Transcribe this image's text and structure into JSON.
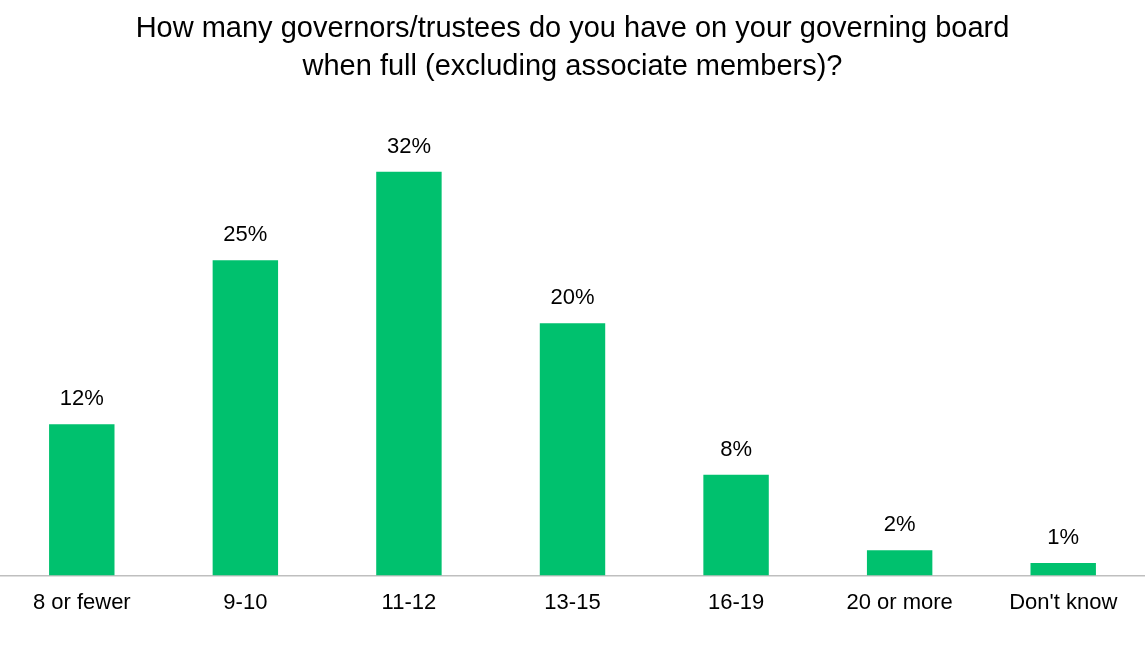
{
  "chart_data": {
    "type": "bar",
    "title": "How many governors/trustees do you have on your governing board when full (excluding associate members)?",
    "categories": [
      "8 or fewer",
      "9-10",
      "11-12",
      "13-15",
      "16-19",
      "20 or more",
      "Don't know"
    ],
    "values": [
      12,
      25,
      32,
      20,
      8,
      2,
      1
    ],
    "value_labels": [
      "12%",
      "25%",
      "32%",
      "20%",
      "8%",
      "2%",
      "1%"
    ],
    "color": "#00c16e",
    "grid": false,
    "legend": false
  }
}
